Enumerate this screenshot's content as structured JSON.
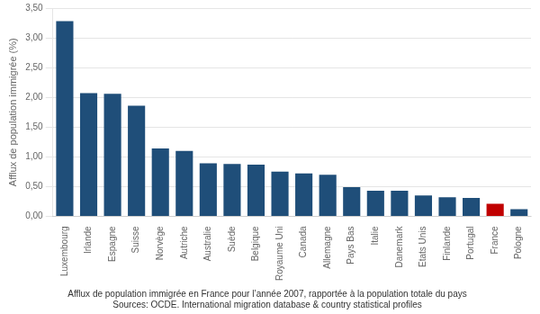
{
  "chart_data": {
    "type": "bar",
    "categories": [
      "Luxembourg",
      "Irlande",
      "Espagne",
      "Suisse",
      "Norvège",
      "Autriche",
      "Australie",
      "Suède",
      "Belgique",
      "Royaume Uni",
      "Canada",
      "Allemagne",
      "Pays Bas",
      "Italie",
      "Danemark",
      "Etats Unis",
      "Finlande",
      "Portugal",
      "France",
      "Pologne"
    ],
    "values": [
      3.28,
      2.07,
      2.06,
      1.86,
      1.14,
      1.1,
      0.89,
      0.88,
      0.87,
      0.75,
      0.72,
      0.7,
      0.49,
      0.43,
      0.43,
      0.35,
      0.32,
      0.31,
      0.21,
      0.12
    ],
    "colors": [
      "#1f4e79",
      "#1f4e79",
      "#1f4e79",
      "#1f4e79",
      "#1f4e79",
      "#1f4e79",
      "#1f4e79",
      "#1f4e79",
      "#1f4e79",
      "#1f4e79",
      "#1f4e79",
      "#1f4e79",
      "#1f4e79",
      "#1f4e79",
      "#1f4e79",
      "#1f4e79",
      "#1f4e79",
      "#1f4e79",
      "#c00000",
      "#1f4e79"
    ],
    "y_label": "Afflux de population immigrée (%)",
    "ylim": [
      0,
      3.5
    ],
    "yticks": [
      {
        "value": 0.0,
        "label": "0,00"
      },
      {
        "value": 0.5,
        "label": "0,50"
      },
      {
        "value": 1.0,
        "label": "1,00"
      },
      {
        "value": 1.5,
        "label": "1,50"
      },
      {
        "value": 2.0,
        "label": "2,00"
      },
      {
        "value": 2.5,
        "label": "2,50"
      },
      {
        "value": 3.0,
        "label": "3,00"
      },
      {
        "value": 3.5,
        "label": "3,50"
      }
    ],
    "grid": true,
    "annotations": [
      "Afflux de population immigrée en France pour l’année 2007, rapportée à la population totale du pays",
      "Sources: OCDE. International migration database & country statistical profiles"
    ]
  }
}
